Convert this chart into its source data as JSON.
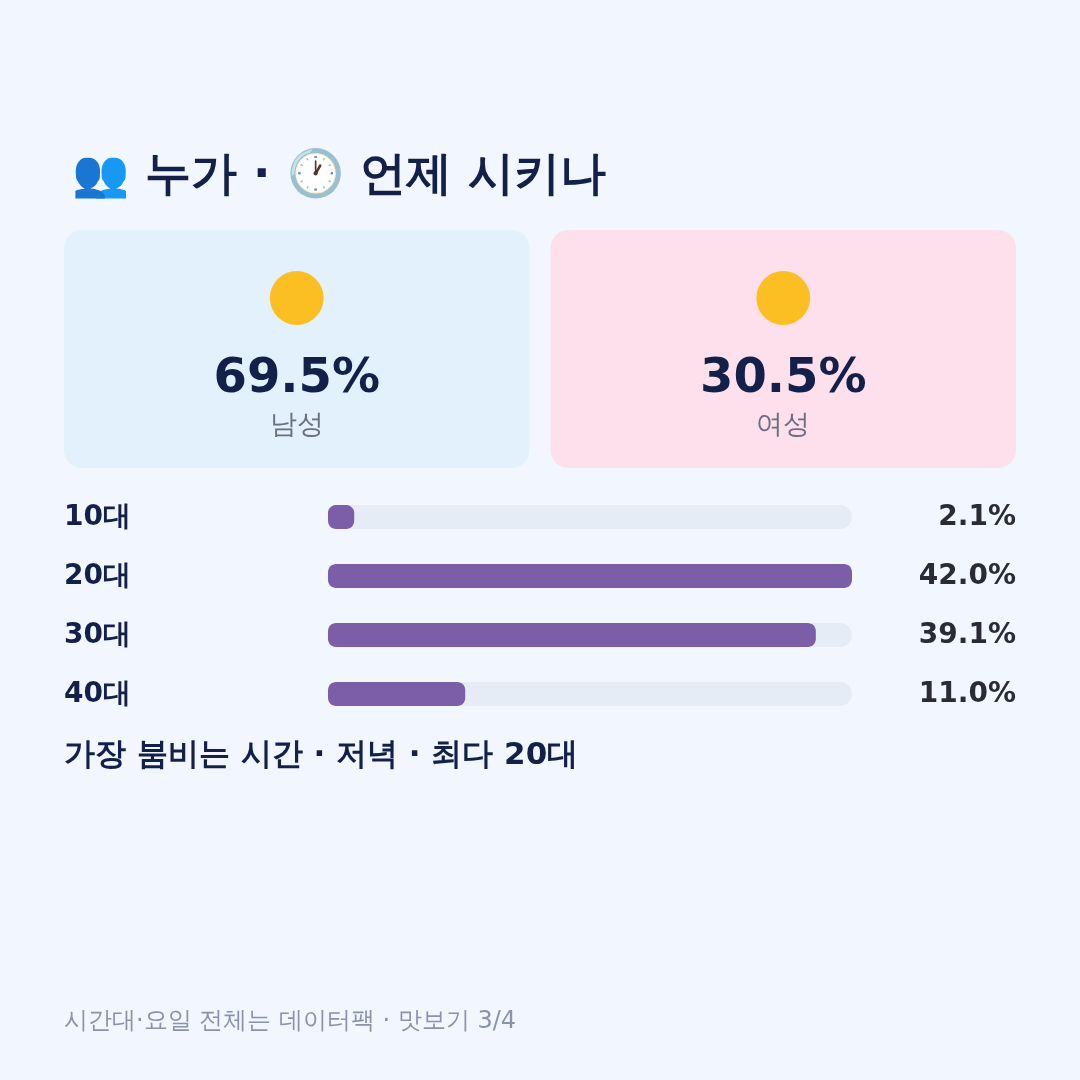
{
  "chart_data": [
    {
      "type": "other",
      "title": "👥 누가 · 🕐 언제 시키나",
      "categories": [
        "남성",
        "여성"
      ],
      "values": [
        69.5,
        30.5
      ],
      "value_labels": [
        "69.5%",
        "30.5%"
      ],
      "colors": [
        "#e3f1fc",
        "#fde0ec"
      ]
    },
    {
      "type": "bar",
      "orientation": "horizontal",
      "categories": [
        "10대",
        "20대",
        "30대",
        "40대"
      ],
      "values": [
        2.1,
        42.0,
        39.1,
        11.0
      ],
      "value_labels": [
        "2.1%",
        "42.0%",
        "39.1%",
        "11.0%"
      ],
      "color": "#7b5ea7",
      "xlim": [
        0,
        42
      ],
      "tick_labels": "y",
      "annotations": [
        "가장 붐비는 시간 · 저녁 · 최다 20대",
        "시간대·요일 전체는 데이터팩 · 맛보기 3/4"
      ]
    }
  ]
}
